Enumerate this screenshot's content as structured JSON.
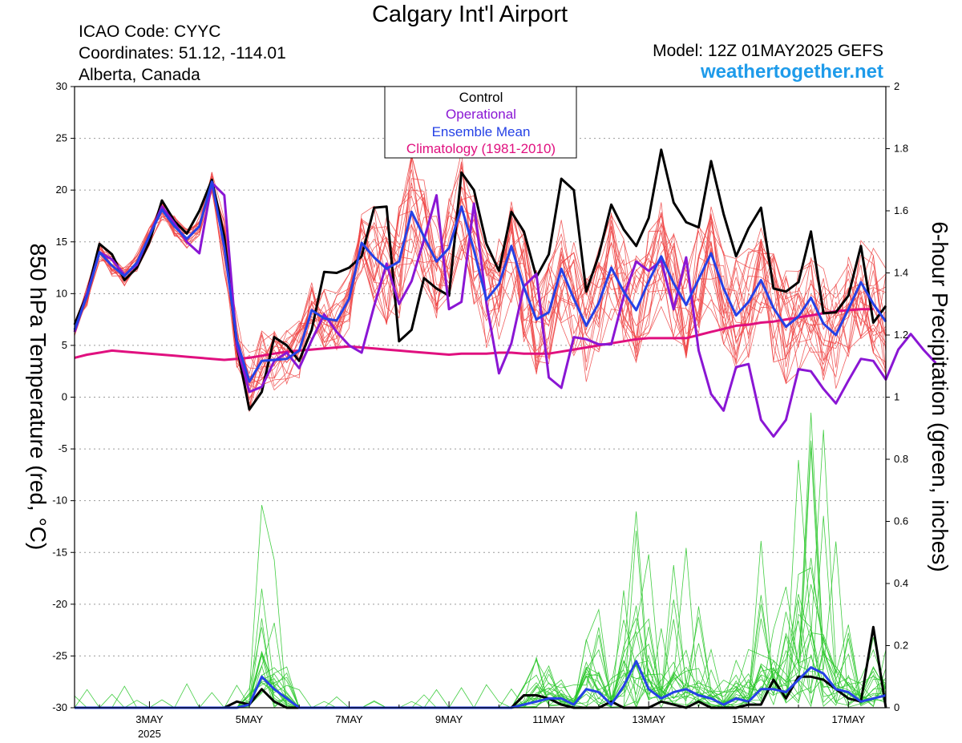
{
  "header": {
    "title": "Calgary Int'l Airport",
    "icao": "ICAO Code: CYYC",
    "coordinates": "Coordinates: 51.12, -114.01",
    "region": "Alberta, Canada",
    "model": "Model: 12Z 01MAY2025 GEFS",
    "site": "weathertogether.net"
  },
  "colors": {
    "control": "#000000",
    "operational": "#8a16d4",
    "ensemble_mean": "#2541e6",
    "climatology": "#e0107f",
    "member_temp": "#ef4444",
    "member_precip": "#2ec82e",
    "site": "#1e9bea"
  },
  "chart_data": {
    "type": "line",
    "title": "Calgary Int'l Airport",
    "xlabel": "",
    "ylabel": "850 hPa Temperature (red, °C)",
    "y2label": "6-hour Precipitation (green, inches)",
    "ylim": [
      -30,
      30
    ],
    "y2lim": [
      0,
      2
    ],
    "yticks": [
      "30",
      "25",
      "20",
      "15",
      "10",
      "5",
      "0",
      "-5",
      "-10",
      "-15",
      "-20",
      "-25",
      "-30"
    ],
    "y2ticks": [
      "2",
      "1.8",
      "1.6",
      "1.4",
      "1.2",
      "1",
      "0.8",
      "0.6",
      "0.4",
      "0.2",
      "0"
    ],
    "xlim_days": [
      1.5,
      17.75
    ],
    "xticks": [
      {
        "day": 3,
        "label": "3MAY",
        "sub": "2025"
      },
      {
        "day": 5,
        "label": "5MAY",
        "sub": ""
      },
      {
        "day": 7,
        "label": "7MAY",
        "sub": ""
      },
      {
        "day": 9,
        "label": "9MAY",
        "sub": ""
      },
      {
        "day": 11,
        "label": "11MAY",
        "sub": ""
      },
      {
        "day": 13,
        "label": "13MAY",
        "sub": ""
      },
      {
        "day": 15,
        "label": "15MAY",
        "sub": ""
      },
      {
        "day": 17,
        "label": "17MAY",
        "sub": ""
      }
    ],
    "grid": true,
    "legend": {
      "position": "top-center",
      "entries": [
        "Control",
        "Operational",
        "Ensemble Mean",
        "Climatology (1981-2010)"
      ]
    },
    "x_start_day": 1.5,
    "x_step_days": 0.25,
    "series": [
      {
        "name": "Control",
        "axis": "temperature",
        "values": [
          7,
          10,
          14.8,
          13.8,
          11.3,
          12.5,
          15,
          19,
          17,
          15.8,
          18,
          21,
          15.5,
          5,
          -1.2,
          0.5,
          5.8,
          5,
          3.5,
          6.5,
          12.1,
          12,
          12.5,
          13.6,
          18.3,
          18.4,
          5.4,
          6.5,
          11.5,
          10.5,
          9.8,
          21.7,
          20,
          14.8,
          12.2,
          17.9,
          16,
          11.6,
          13.8,
          21.1,
          20,
          10.2,
          13.7,
          18.6,
          16.2,
          14.6,
          17.3,
          23.9,
          18.8,
          16.9,
          16.4,
          22.8,
          17.7,
          13.6,
          16.3,
          18.3,
          10.5,
          10.2,
          11.1,
          16.0,
          8.1,
          8.2,
          9.8,
          14.6,
          7.2,
          8.8
        ]
      },
      {
        "name": "Operational",
        "axis": "temperature",
        "values": [
          6.3,
          10,
          14,
          13.3,
          11.8,
          12.8,
          15.6,
          18.4,
          16.8,
          15,
          13.9,
          20.7,
          19.5,
          5,
          0.5,
          1,
          3.5,
          4.3,
          2.8,
          5.5,
          8,
          6.3,
          5,
          4.3,
          8.8,
          12.9,
          9,
          11.2,
          15.2,
          19.5,
          8.5,
          9.2,
          18.7,
          9.1,
          2.3,
          5.2,
          10.7,
          11.9,
          1.9,
          0.9,
          5.8,
          5.6,
          5.1,
          5.1,
          9.7,
          13.1,
          12.2,
          13.2,
          8.5,
          13.5,
          4.5,
          0.3,
          -1.3,
          2.9,
          3.2,
          -2.2,
          -3.8,
          -2.2,
          2.7,
          2.5,
          0.8,
          -0.6,
          1.6,
          3.7,
          3.5,
          1.7,
          4.6,
          6.1,
          4.6,
          3.3
        ]
      },
      {
        "name": "Ensemble Mean",
        "axis": "temperature",
        "values": [
          6.5,
          9.8,
          14,
          12.7,
          11.7,
          13,
          15.6,
          18.1,
          16.5,
          15.3,
          16.5,
          20.8,
          14.5,
          5.5,
          1.5,
          3.5,
          3.6,
          3.7,
          4.5,
          8.4,
          7.6,
          7.4,
          9.5,
          14.9,
          13.5,
          12.4,
          13.1,
          17.9,
          15.5,
          13.1,
          14.4,
          18.4,
          14.2,
          9.4,
          10.9,
          14.6,
          10.6,
          7.5,
          8.2,
          12.4,
          9.5,
          6.9,
          9.1,
          12.5,
          10.2,
          8.4,
          11.2,
          13.6,
          11.0,
          8.9,
          11.4,
          13.9,
          10.5,
          7.9,
          9.2,
          11.3,
          8.6,
          6.8,
          7.8,
          9.6,
          7.1,
          6.0,
          8.5,
          11.1,
          9.0,
          7.3
        ]
      },
      {
        "name": "Climatology (1981-2010)",
        "axis": "temperature",
        "values": [
          3.8,
          4.1,
          4.3,
          4.5,
          4.4,
          4.3,
          4.2,
          4.1,
          4.0,
          3.9,
          3.8,
          3.7,
          3.6,
          3.7,
          3.8,
          4.0,
          4.2,
          4.4,
          4.5,
          4.6,
          4.7,
          4.8,
          4.9,
          4.8,
          4.7,
          4.6,
          4.5,
          4.4,
          4.3,
          4.2,
          4.1,
          4.2,
          4.2,
          4.2,
          4.3,
          4.3,
          4.2,
          4.2,
          4.2,
          4.4,
          4.6,
          4.8,
          5.0,
          5.2,
          5.4,
          5.6,
          5.7,
          5.7,
          5.7,
          5.7,
          6.0,
          6.3,
          6.6,
          6.9,
          7.0,
          7.2,
          7.3,
          7.5,
          7.7,
          7.9,
          8.1,
          8.3,
          8.4,
          8.5,
          8.5
        ]
      },
      {
        "name": "Control",
        "axis": "precipitation",
        "values": [
          0,
          0,
          0,
          0,
          0,
          0,
          0,
          0,
          0,
          0,
          0,
          0,
          0,
          0.02,
          0.01,
          0.06,
          0.02,
          0,
          0,
          0,
          0,
          0,
          0,
          0,
          0,
          0,
          0,
          0,
          0,
          0,
          0,
          0,
          0,
          0,
          0,
          0,
          0.04,
          0.04,
          0.03,
          0.01,
          0,
          0,
          0,
          0.02,
          0,
          0,
          0,
          0.02,
          0.01,
          0,
          0.02,
          0,
          0,
          0,
          0.01,
          0.01,
          0.09,
          0.03,
          0.1,
          0.1,
          0.09,
          0.06,
          0.03,
          0.02,
          0.26,
          0
        ]
      },
      {
        "name": "Ensemble Mean",
        "axis": "precipitation",
        "values": [
          0,
          0,
          0,
          0,
          0,
          0,
          0,
          0,
          0,
          0,
          0,
          0,
          0,
          0,
          0.01,
          0.1,
          0.06,
          0.03,
          0,
          0,
          0,
          0,
          0,
          0,
          0,
          0,
          0,
          0,
          0,
          0,
          0,
          0,
          0,
          0,
          0,
          0,
          0.01,
          0.02,
          0.03,
          0.03,
          0.01,
          0.06,
          0.05,
          0.01,
          0.07,
          0.15,
          0.06,
          0.03,
          0.05,
          0.06,
          0.04,
          0.03,
          0.01,
          0.03,
          0.02,
          0.06,
          0.06,
          0.05,
          0.09,
          0.13,
          0.11,
          0.06,
          0.05,
          0.02,
          0.03,
          0.04
        ]
      }
    ]
  }
}
